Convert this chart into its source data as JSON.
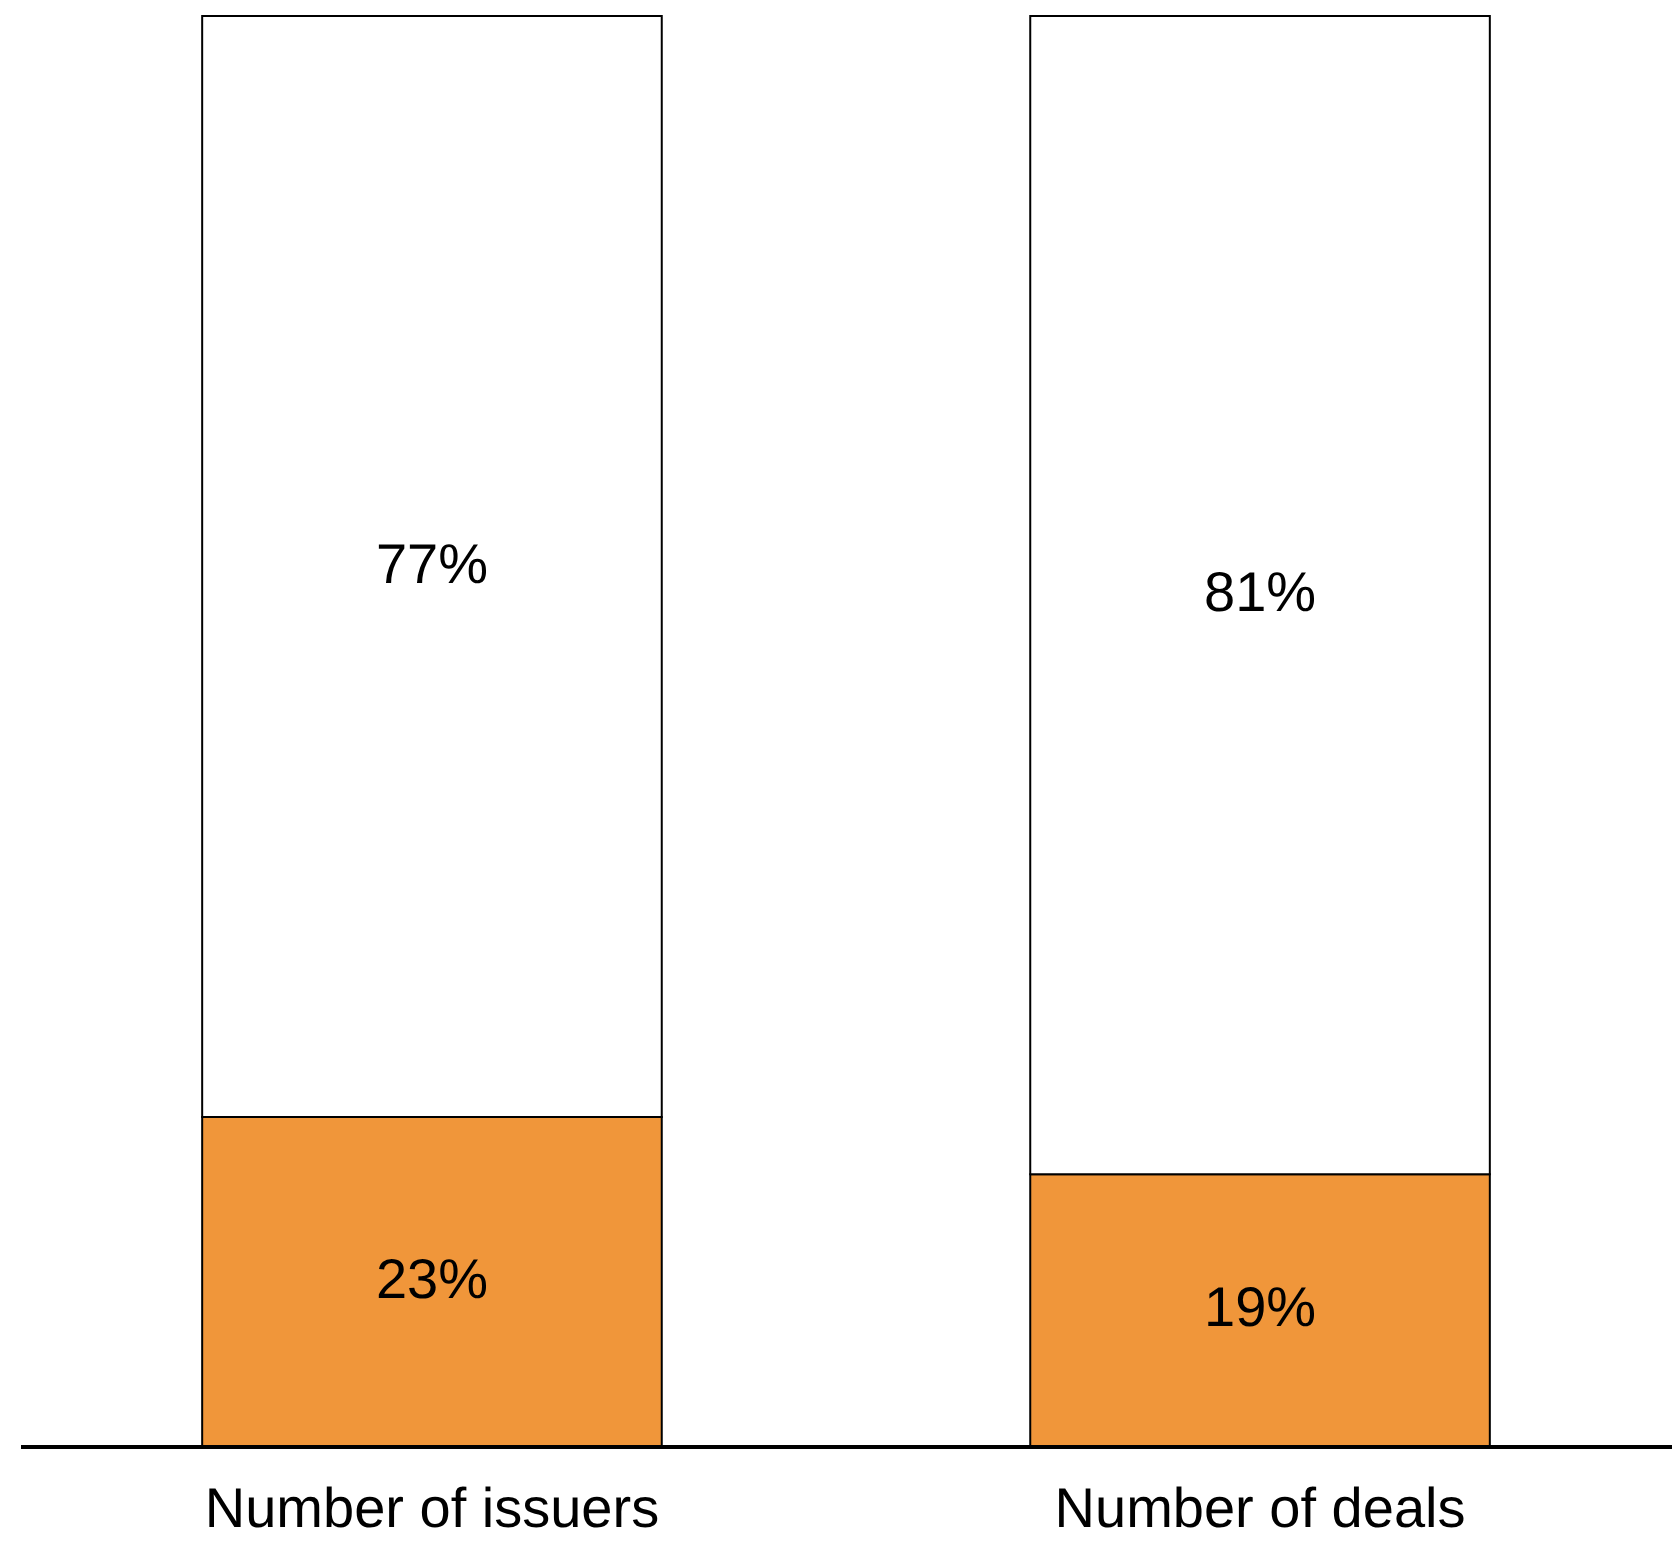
{
  "chart_data": {
    "type": "bar",
    "stacked": true,
    "categories": [
      "Number of issuers",
      "Number of deals"
    ],
    "series": [
      {
        "color": "#f0963a",
        "values": [
          23,
          19
        ],
        "value_labels": [
          "23%",
          "19%"
        ]
      },
      {
        "color": "#ffffff",
        "values": [
          77,
          81
        ],
        "value_labels": [
          "77%",
          "81%"
        ]
      }
    ],
    "ylim": [
      0,
      100
    ],
    "tick_labels": "x"
  }
}
